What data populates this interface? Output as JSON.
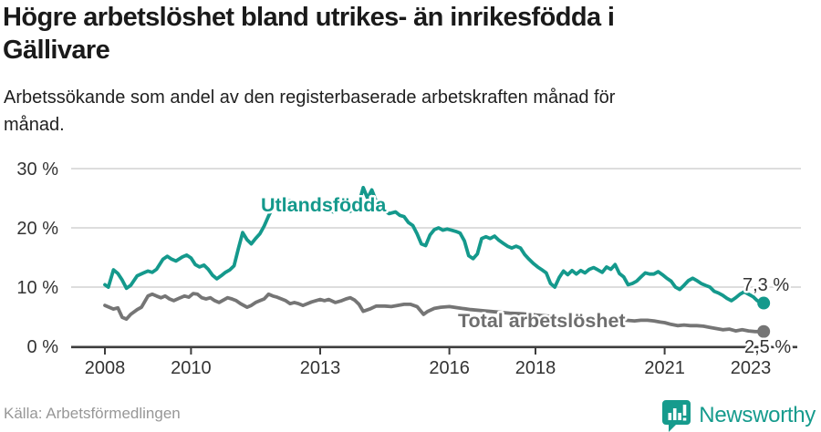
{
  "header": {
    "title_lines": [
      "Högre arbetslöshet bland utrikes- än inrikesfödda i",
      "Gällivare"
    ],
    "subtitle_lines": [
      "Arbetssökande som andel av den registerbaserade arbetskraften månad för",
      "månad."
    ]
  },
  "footer": {
    "source": "Källa: Arbetsförmedlingen",
    "brand_name": "Newsworthy",
    "brand_icon": "newsworthy-barchart-pin-icon"
  },
  "colors": {
    "teal": "#14998c",
    "gray": "#757575",
    "gray_label": "#6e6e6e",
    "grid": "#d8d8d8",
    "axis": "#3d3d3d",
    "tick_text": "#333333",
    "end_label_text": "#333333",
    "brand_teal": "#169b8d"
  },
  "chart_data": {
    "type": "line",
    "title": "Högre arbetslöshet bland utrikes- än inrikesfödda i Gällivare",
    "subtitle": "Arbetssökande som andel av den registerbaserade arbetskraften månad för månad.",
    "xlabel": "",
    "ylabel": "",
    "ylim": [
      0,
      30
    ],
    "xlim": [
      2007.2,
      2024.2
    ],
    "grid": "horizontal",
    "legend": "inline-labels",
    "y_ticks": [
      {
        "value": 30,
        "label": "30 %"
      },
      {
        "value": 20,
        "label": "20 %"
      },
      {
        "value": 10,
        "label": "10 %"
      },
      {
        "value": 0,
        "label": "0 %"
      }
    ],
    "x_ticks": [
      {
        "value": 2008,
        "label": "2008"
      },
      {
        "value": 2010,
        "label": "2010"
      },
      {
        "value": 2013,
        "label": "2013"
      },
      {
        "value": 2016,
        "label": "2016"
      },
      {
        "value": 2018,
        "label": "2018"
      },
      {
        "value": 2021,
        "label": "2021"
      },
      {
        "value": 2023,
        "label": "2023"
      }
    ],
    "series": [
      {
        "id": "utlandsfodda",
        "name": "Utlandsfödda",
        "color": "#14998c",
        "label_color": "#14998c",
        "end_label": "7,3 %",
        "points": [
          [
            2008.0,
            10.4
          ],
          [
            2008.08,
            10.0
          ],
          [
            2008.2,
            12.9
          ],
          [
            2008.3,
            12.3
          ],
          [
            2008.4,
            11.2
          ],
          [
            2008.5,
            9.8
          ],
          [
            2008.6,
            10.3
          ],
          [
            2008.75,
            11.9
          ],
          [
            2008.9,
            12.4
          ],
          [
            2009.0,
            12.7
          ],
          [
            2009.1,
            12.5
          ],
          [
            2009.2,
            13.0
          ],
          [
            2009.35,
            14.7
          ],
          [
            2009.45,
            15.2
          ],
          [
            2009.55,
            14.7
          ],
          [
            2009.65,
            14.4
          ],
          [
            2009.8,
            15.1
          ],
          [
            2009.9,
            15.4
          ],
          [
            2010.0,
            14.9
          ],
          [
            2010.1,
            13.8
          ],
          [
            2010.2,
            13.4
          ],
          [
            2010.3,
            13.7
          ],
          [
            2010.4,
            13.0
          ],
          [
            2010.5,
            12.0
          ],
          [
            2010.6,
            11.4
          ],
          [
            2010.7,
            11.9
          ],
          [
            2010.8,
            12.5
          ],
          [
            2010.9,
            12.9
          ],
          [
            2011.0,
            13.6
          ],
          [
            2011.1,
            16.5
          ],
          [
            2011.2,
            19.2
          ],
          [
            2011.3,
            18.0
          ],
          [
            2011.4,
            17.3
          ],
          [
            2011.5,
            18.2
          ],
          [
            2011.6,
            19.0
          ],
          [
            2011.7,
            20.3
          ],
          [
            2011.8,
            22.0
          ],
          [
            2011.9,
            23.5
          ],
          [
            2012.0,
            23.2
          ],
          [
            2012.1,
            23.6
          ],
          [
            2012.2,
            24.2
          ],
          [
            2012.3,
            24.6
          ],
          [
            2012.4,
            24.1
          ],
          [
            2012.5,
            23.7
          ],
          [
            2012.6,
            24.0
          ],
          [
            2012.7,
            23.5
          ],
          [
            2012.8,
            23.1
          ],
          [
            2012.9,
            23.4
          ],
          [
            2013.0,
            23.1
          ],
          [
            2013.1,
            23.5
          ],
          [
            2013.2,
            23.1
          ],
          [
            2013.3,
            22.7
          ],
          [
            2013.4,
            23.2
          ],
          [
            2013.5,
            23.5
          ],
          [
            2013.6,
            23.2
          ],
          [
            2013.7,
            22.8
          ],
          [
            2013.8,
            23.3
          ],
          [
            2013.9,
            24.2
          ],
          [
            2014.0,
            26.8
          ],
          [
            2014.1,
            25.0
          ],
          [
            2014.2,
            26.4
          ],
          [
            2014.3,
            24.5
          ],
          [
            2014.4,
            23.5
          ],
          [
            2014.5,
            22.9
          ],
          [
            2014.6,
            22.4
          ],
          [
            2014.75,
            22.7
          ],
          [
            2014.85,
            22.1
          ],
          [
            2014.95,
            21.9
          ],
          [
            2015.05,
            20.9
          ],
          [
            2015.15,
            20.4
          ],
          [
            2015.25,
            19.0
          ],
          [
            2015.35,
            17.3
          ],
          [
            2015.45,
            17.0
          ],
          [
            2015.55,
            18.8
          ],
          [
            2015.65,
            19.7
          ],
          [
            2015.75,
            20.0
          ],
          [
            2015.85,
            19.6
          ],
          [
            2015.95,
            19.8
          ],
          [
            2016.05,
            19.6
          ],
          [
            2016.15,
            19.4
          ],
          [
            2016.25,
            19.1
          ],
          [
            2016.35,
            17.8
          ],
          [
            2016.45,
            15.3
          ],
          [
            2016.55,
            14.8
          ],
          [
            2016.65,
            15.6
          ],
          [
            2016.75,
            18.2
          ],
          [
            2016.85,
            18.5
          ],
          [
            2016.95,
            18.2
          ],
          [
            2017.05,
            18.6
          ],
          [
            2017.15,
            17.9
          ],
          [
            2017.25,
            17.4
          ],
          [
            2017.35,
            16.9
          ],
          [
            2017.45,
            16.6
          ],
          [
            2017.55,
            16.9
          ],
          [
            2017.65,
            16.6
          ],
          [
            2017.75,
            15.5
          ],
          [
            2017.85,
            14.7
          ],
          [
            2017.95,
            14.0
          ],
          [
            2018.05,
            13.4
          ],
          [
            2018.15,
            12.9
          ],
          [
            2018.25,
            12.4
          ],
          [
            2018.35,
            10.6
          ],
          [
            2018.45,
            10.0
          ],
          [
            2018.55,
            11.6
          ],
          [
            2018.65,
            12.7
          ],
          [
            2018.75,
            12.1
          ],
          [
            2018.85,
            12.8
          ],
          [
            2018.95,
            12.2
          ],
          [
            2019.05,
            12.8
          ],
          [
            2019.15,
            12.4
          ],
          [
            2019.25,
            13.0
          ],
          [
            2019.35,
            13.3
          ],
          [
            2019.45,
            12.9
          ],
          [
            2019.55,
            12.5
          ],
          [
            2019.65,
            13.4
          ],
          [
            2019.75,
            13.0
          ],
          [
            2019.85,
            13.8
          ],
          [
            2019.95,
            12.3
          ],
          [
            2020.05,
            11.7
          ],
          [
            2020.15,
            10.4
          ],
          [
            2020.25,
            10.6
          ],
          [
            2020.35,
            11.0
          ],
          [
            2020.45,
            11.7
          ],
          [
            2020.55,
            12.4
          ],
          [
            2020.65,
            12.2
          ],
          [
            2020.75,
            12.2
          ],
          [
            2020.85,
            12.6
          ],
          [
            2020.95,
            12.1
          ],
          [
            2021.05,
            11.5
          ],
          [
            2021.15,
            11.0
          ],
          [
            2021.25,
            10.0
          ],
          [
            2021.35,
            9.6
          ],
          [
            2021.45,
            10.3
          ],
          [
            2021.55,
            11.1
          ],
          [
            2021.65,
            11.5
          ],
          [
            2021.75,
            11.1
          ],
          [
            2021.85,
            10.6
          ],
          [
            2021.95,
            10.3
          ],
          [
            2022.05,
            10.0
          ],
          [
            2022.15,
            9.3
          ],
          [
            2022.25,
            9.0
          ],
          [
            2022.35,
            8.6
          ],
          [
            2022.45,
            8.1
          ],
          [
            2022.55,
            7.7
          ],
          [
            2022.65,
            8.2
          ],
          [
            2022.75,
            8.8
          ],
          [
            2022.85,
            9.2
          ],
          [
            2022.95,
            8.8
          ],
          [
            2023.05,
            8.4
          ],
          [
            2023.15,
            7.7
          ],
          [
            2023.25,
            7.5
          ],
          [
            2023.3,
            7.3
          ]
        ]
      },
      {
        "id": "total",
        "name": "Total arbetslöshet",
        "color": "#757575",
        "label_color": "#6e6e6e",
        "end_label": "2,5 %",
        "points": [
          [
            2008.0,
            6.9
          ],
          [
            2008.1,
            6.6
          ],
          [
            2008.2,
            6.3
          ],
          [
            2008.3,
            6.5
          ],
          [
            2008.4,
            4.9
          ],
          [
            2008.5,
            4.6
          ],
          [
            2008.6,
            5.4
          ],
          [
            2008.75,
            6.2
          ],
          [
            2008.85,
            6.6
          ],
          [
            2009.0,
            8.5
          ],
          [
            2009.1,
            8.8
          ],
          [
            2009.2,
            8.5
          ],
          [
            2009.3,
            8.2
          ],
          [
            2009.4,
            8.5
          ],
          [
            2009.5,
            8.0
          ],
          [
            2009.6,
            7.7
          ],
          [
            2009.75,
            8.2
          ],
          [
            2009.85,
            8.5
          ],
          [
            2009.95,
            8.3
          ],
          [
            2010.05,
            8.9
          ],
          [
            2010.15,
            8.8
          ],
          [
            2010.25,
            8.2
          ],
          [
            2010.35,
            8.0
          ],
          [
            2010.45,
            8.2
          ],
          [
            2010.55,
            7.7
          ],
          [
            2010.65,
            7.4
          ],
          [
            2010.75,
            7.8
          ],
          [
            2010.85,
            8.2
          ],
          [
            2010.95,
            8.0
          ],
          [
            2011.05,
            7.7
          ],
          [
            2011.15,
            7.2
          ],
          [
            2011.3,
            6.6
          ],
          [
            2011.4,
            6.9
          ],
          [
            2011.5,
            7.4
          ],
          [
            2011.6,
            7.7
          ],
          [
            2011.7,
            8.0
          ],
          [
            2011.8,
            8.8
          ],
          [
            2011.9,
            8.5
          ],
          [
            2012.0,
            8.3
          ],
          [
            2012.1,
            8.0
          ],
          [
            2012.2,
            7.7
          ],
          [
            2012.3,
            7.2
          ],
          [
            2012.4,
            7.4
          ],
          [
            2012.5,
            7.2
          ],
          [
            2012.6,
            6.9
          ],
          [
            2012.7,
            7.2
          ],
          [
            2012.8,
            7.5
          ],
          [
            2012.9,
            7.7
          ],
          [
            2013.0,
            7.9
          ],
          [
            2013.1,
            7.7
          ],
          [
            2013.2,
            7.9
          ],
          [
            2013.35,
            7.4
          ],
          [
            2013.5,
            7.7
          ],
          [
            2013.6,
            8.0
          ],
          [
            2013.7,
            8.2
          ],
          [
            2013.8,
            7.8
          ],
          [
            2013.9,
            7.1
          ],
          [
            2014.0,
            5.9
          ],
          [
            2014.15,
            6.3
          ],
          [
            2014.3,
            6.8
          ],
          [
            2014.5,
            6.8
          ],
          [
            2014.65,
            6.7
          ],
          [
            2014.8,
            6.9
          ],
          [
            2014.95,
            7.1
          ],
          [
            2015.1,
            7.1
          ],
          [
            2015.25,
            6.7
          ],
          [
            2015.4,
            5.4
          ],
          [
            2015.5,
            5.9
          ],
          [
            2015.65,
            6.4
          ],
          [
            2015.8,
            6.6
          ],
          [
            2016.0,
            6.7
          ],
          [
            2016.2,
            6.5
          ],
          [
            2016.5,
            6.2
          ],
          [
            2016.8,
            6.0
          ],
          [
            2017.1,
            5.8
          ],
          [
            2017.4,
            5.6
          ],
          [
            2017.7,
            5.5
          ],
          [
            2018.0,
            5.3
          ],
          [
            2018.3,
            5.1
          ],
          [
            2018.6,
            4.9
          ],
          [
            2018.9,
            4.8
          ],
          [
            2019.2,
            4.7
          ],
          [
            2019.5,
            4.6
          ],
          [
            2019.8,
            4.5
          ],
          [
            2020.1,
            4.4
          ],
          [
            2020.3,
            4.3
          ],
          [
            2020.45,
            4.4
          ],
          [
            2020.6,
            4.4
          ],
          [
            2020.75,
            4.3
          ],
          [
            2020.9,
            4.1
          ],
          [
            2021.0,
            4.0
          ],
          [
            2021.15,
            3.7
          ],
          [
            2021.3,
            3.5
          ],
          [
            2021.45,
            3.6
          ],
          [
            2021.6,
            3.5
          ],
          [
            2021.75,
            3.5
          ],
          [
            2021.9,
            3.4
          ],
          [
            2022.05,
            3.2
          ],
          [
            2022.2,
            3.0
          ],
          [
            2022.35,
            2.8
          ],
          [
            2022.5,
            2.9
          ],
          [
            2022.65,
            2.6
          ],
          [
            2022.8,
            2.8
          ],
          [
            2022.95,
            2.6
          ],
          [
            2023.1,
            2.5
          ],
          [
            2023.3,
            2.5
          ]
        ]
      }
    ]
  }
}
